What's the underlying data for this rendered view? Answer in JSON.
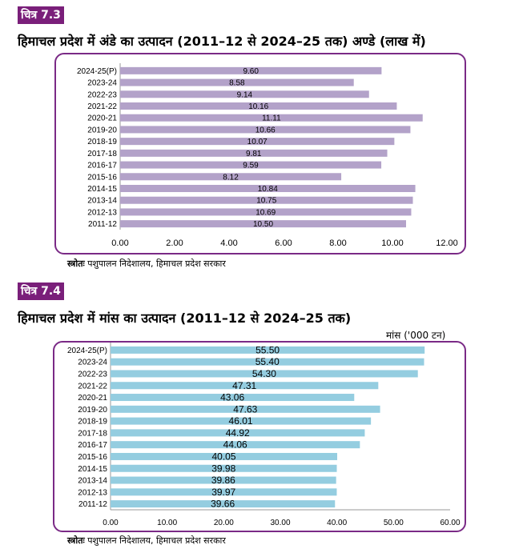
{
  "figure1": {
    "badge": "चित्र 7.3",
    "title": "हिमाचल प्रदेश में अंडे का उत्पादन (2011–12 से 2024–25 तक) अण्डे (लाख में)",
    "source_label": "स्त्रोतः",
    "source_text": "पशुपालन निदेशालय, हिमाचल प्रदेश सरकार"
  },
  "figure2": {
    "badge": "चित्र 7.4",
    "title": "हिमाचल प्रदेश में मांस का उत्पादन (2011–12 से 2024–25 तक)",
    "unit": "मांस ('000 टन)",
    "source_label": "स्त्रोतः",
    "source_text": "पशुपालन निदेशालय, हिमाचल प्रदेश सरकार"
  },
  "chart_data": [
    {
      "type": "bar",
      "orientation": "horizontal",
      "categories": [
        "2024-25(P)",
        "2023-24",
        "2022-23",
        "2021-22",
        "2020-21",
        "2019-20",
        "2018-19",
        "2017-18",
        "2016-17",
        "2015-16",
        "2014-15",
        "2013-14",
        "2012-13",
        "2011-12"
      ],
      "values": [
        9.6,
        8.58,
        9.14,
        10.16,
        11.11,
        10.66,
        10.07,
        9.81,
        9.59,
        8.12,
        10.84,
        10.75,
        10.69,
        10.5
      ],
      "value_labels": [
        "9.60",
        "8.58",
        "9.14",
        "10.16",
        "11.11",
        "10.66",
        "10.07",
        "9.81",
        "9.59",
        "8.12",
        "10.84",
        "10.75",
        "10.69",
        "10.50"
      ],
      "xlim": [
        0,
        12
      ],
      "xticks": [
        "0.00",
        "2.00",
        "4.00",
        "6.00",
        "8.00",
        "10.00",
        "12.00"
      ],
      "bar_color": "#b3a2c9"
    },
    {
      "type": "bar",
      "orientation": "horizontal",
      "categories": [
        "2024-25(P)",
        "2023-24",
        "2022-23",
        "2021-22",
        "2020-21",
        "2019-20",
        "2018-19",
        "2017-18",
        "2016-17",
        "2015-16",
        "2014-15",
        "2013-14",
        "2012-13",
        "2011-12"
      ],
      "values": [
        55.5,
        55.4,
        54.3,
        47.31,
        43.06,
        47.63,
        46.01,
        44.92,
        44.06,
        40.05,
        39.98,
        39.86,
        39.97,
        39.66
      ],
      "value_labels": [
        "55.50",
        "55.40",
        "54.30",
        "47.31",
        "43.06",
        "47.63",
        "46.01",
        "44.92",
        "44.06",
        "40.05",
        "39.98",
        "39.86",
        "39.97",
        "39.66"
      ],
      "xlim": [
        0,
        60
      ],
      "xticks": [
        "0.00",
        "10.00",
        "20.00",
        "30.00",
        "40.00",
        "50.00",
        "60.00"
      ],
      "bar_color": "#94cde0"
    }
  ]
}
